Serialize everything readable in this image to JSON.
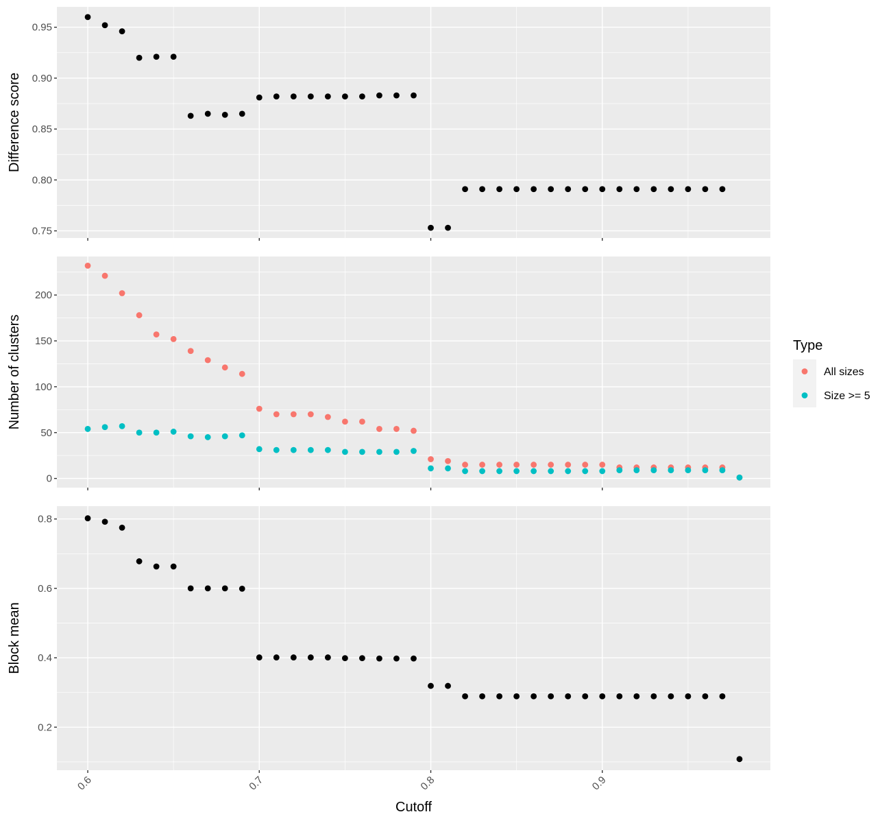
{
  "chart_data": [
    {
      "type": "scatter",
      "ylabel": "Difference score",
      "xlim": [
        0.582,
        0.998
      ],
      "ylim": [
        0.743,
        0.97
      ],
      "y_ticks": [
        0.75,
        0.8,
        0.85,
        0.9,
        0.95
      ],
      "y_tick_labels": [
        "0.75",
        "0.80",
        "0.85",
        "0.90",
        "0.95"
      ],
      "series": [
        {
          "color": "#000000",
          "x": [
            0.6,
            0.61,
            0.62,
            0.63,
            0.64,
            0.65,
            0.66,
            0.67,
            0.68,
            0.69,
            0.7,
            0.71,
            0.72,
            0.73,
            0.74,
            0.75,
            0.76,
            0.77,
            0.78,
            0.79,
            0.8,
            0.81,
            0.82,
            0.83,
            0.84,
            0.85,
            0.86,
            0.87,
            0.88,
            0.89,
            0.9,
            0.91,
            0.92,
            0.93,
            0.94,
            0.95,
            0.96,
            0.97
          ],
          "y": [
            0.96,
            0.952,
            0.946,
            0.92,
            0.921,
            0.921,
            0.863,
            0.865,
            0.864,
            0.865,
            0.881,
            0.882,
            0.882,
            0.882,
            0.882,
            0.882,
            0.882,
            0.883,
            0.883,
            0.883,
            0.753,
            0.753,
            0.791,
            0.791,
            0.791,
            0.791,
            0.791,
            0.791,
            0.791,
            0.791,
            0.791,
            0.791,
            0.791,
            0.791,
            0.791,
            0.791,
            0.791,
            0.791
          ]
        }
      ]
    },
    {
      "type": "scatter",
      "ylabel": "Number of clusters",
      "xlim": [
        0.582,
        0.998
      ],
      "ylim": [
        -10,
        242
      ],
      "y_ticks": [
        0,
        50,
        100,
        150,
        200
      ],
      "y_tick_labels": [
        "0",
        "50",
        "100",
        "150",
        "200"
      ],
      "series": [
        {
          "name": "All sizes",
          "color": "#F8766D",
          "x": [
            0.6,
            0.61,
            0.62,
            0.63,
            0.64,
            0.65,
            0.66,
            0.67,
            0.68,
            0.69,
            0.7,
            0.71,
            0.72,
            0.73,
            0.74,
            0.75,
            0.76,
            0.77,
            0.78,
            0.79,
            0.8,
            0.81,
            0.82,
            0.83,
            0.84,
            0.85,
            0.86,
            0.87,
            0.88,
            0.89,
            0.9,
            0.91,
            0.92,
            0.93,
            0.94,
            0.95,
            0.96,
            0.97,
            0.98
          ],
          "y": [
            232,
            221,
            202,
            178,
            157,
            152,
            139,
            129,
            121,
            114,
            76,
            70,
            70,
            70,
            67,
            62,
            62,
            54,
            54,
            52,
            21,
            19,
            15,
            15,
            15,
            15,
            15,
            15,
            15,
            15,
            15,
            12,
            12,
            12,
            12,
            12,
            12,
            12,
            1
          ]
        },
        {
          "name": "Size >= 5",
          "color": "#00BFC4",
          "x": [
            0.6,
            0.61,
            0.62,
            0.63,
            0.64,
            0.65,
            0.66,
            0.67,
            0.68,
            0.69,
            0.7,
            0.71,
            0.72,
            0.73,
            0.74,
            0.75,
            0.76,
            0.77,
            0.78,
            0.79,
            0.8,
            0.81,
            0.82,
            0.83,
            0.84,
            0.85,
            0.86,
            0.87,
            0.88,
            0.89,
            0.9,
            0.91,
            0.92,
            0.93,
            0.94,
            0.95,
            0.96,
            0.97,
            0.98
          ],
          "y": [
            54,
            56,
            57,
            50,
            50,
            51,
            46,
            45,
            46,
            47,
            32,
            31,
            31,
            31,
            31,
            29,
            29,
            29,
            29,
            30,
            11,
            11,
            8,
            8,
            8,
            8,
            8,
            8,
            8,
            8,
            8,
            9,
            9,
            9,
            9,
            9,
            9,
            9,
            1
          ]
        }
      ]
    },
    {
      "type": "scatter",
      "ylabel": "Block mean",
      "xlim": [
        0.582,
        0.998
      ],
      "ylim": [
        0.076,
        0.837
      ],
      "y_ticks": [
        0.2,
        0.4,
        0.6,
        0.8
      ],
      "y_tick_labels": [
        "0.2",
        "0.4",
        "0.6",
        "0.8"
      ],
      "series": [
        {
          "color": "#000000",
          "x": [
            0.6,
            0.61,
            0.62,
            0.63,
            0.64,
            0.65,
            0.66,
            0.67,
            0.68,
            0.69,
            0.7,
            0.71,
            0.72,
            0.73,
            0.74,
            0.75,
            0.76,
            0.77,
            0.78,
            0.79,
            0.8,
            0.81,
            0.82,
            0.83,
            0.84,
            0.85,
            0.86,
            0.87,
            0.88,
            0.89,
            0.9,
            0.91,
            0.92,
            0.93,
            0.94,
            0.95,
            0.96,
            0.97,
            0.98
          ],
          "y": [
            0.802,
            0.792,
            0.775,
            0.678,
            0.663,
            0.663,
            0.6,
            0.6,
            0.6,
            0.599,
            0.401,
            0.401,
            0.401,
            0.401,
            0.401,
            0.399,
            0.399,
            0.398,
            0.398,
            0.398,
            0.319,
            0.319,
            0.289,
            0.289,
            0.289,
            0.289,
            0.289,
            0.289,
            0.289,
            0.289,
            0.289,
            0.289,
            0.289,
            0.289,
            0.289,
            0.289,
            0.289,
            0.289,
            0.108
          ]
        }
      ]
    }
  ],
  "x_axis": {
    "label": "Cutoff",
    "ticks": [
      0.6,
      0.7,
      0.8,
      0.9
    ],
    "tick_labels": [
      "0.6",
      "0.7",
      "0.8",
      "0.9"
    ],
    "grid": true
  },
  "legend": {
    "title": "Type",
    "placement": "right",
    "entries": [
      {
        "label": "All sizes",
        "color": "#F8766D"
      },
      {
        "label": "Size >= 5",
        "color": "#00BFC4"
      }
    ]
  }
}
